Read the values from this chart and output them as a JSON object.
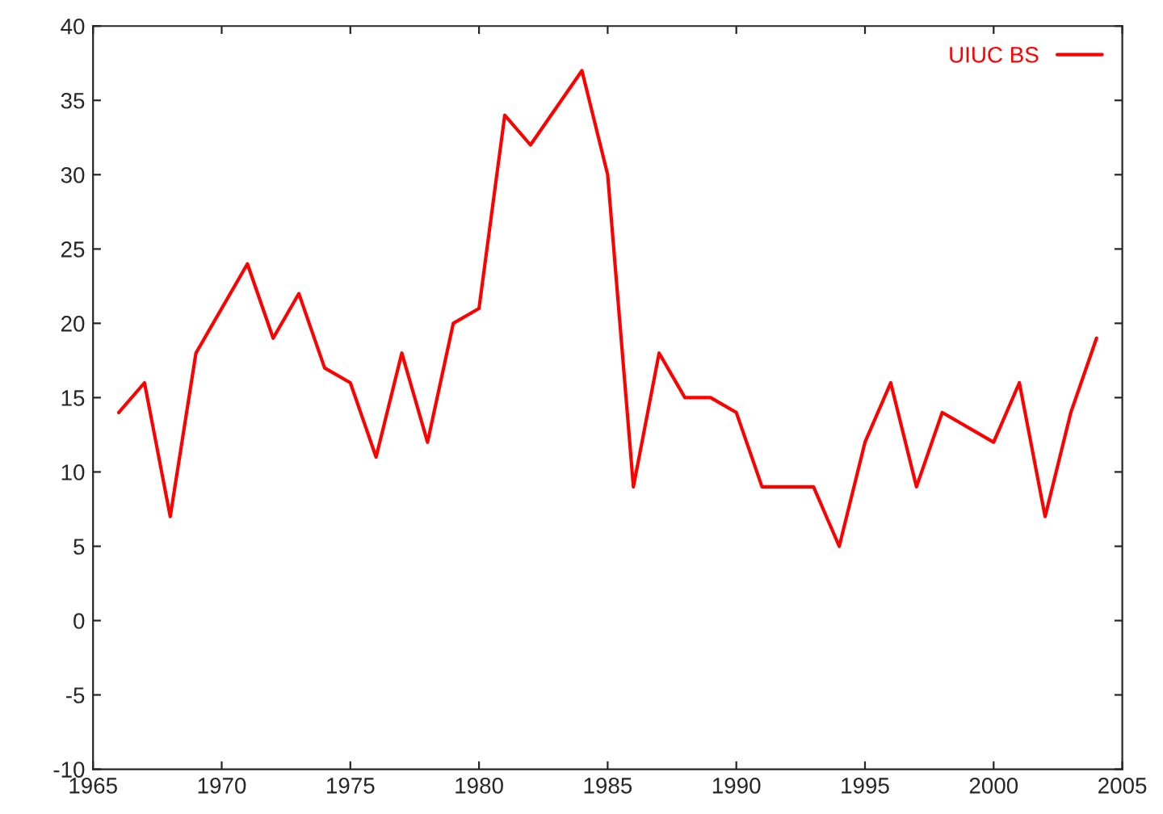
{
  "chart_data": {
    "type": "line",
    "x": [
      1966,
      1967,
      1968,
      1969,
      1971,
      1972,
      1973,
      1974,
      1975,
      1976,
      1977,
      1978,
      1979,
      1980,
      1981,
      1982,
      1984,
      1985,
      1986,
      1987,
      1988,
      1989,
      1990,
      1991,
      1992,
      1993,
      1994,
      1995,
      1996,
      1997,
      1998,
      2000,
      2001,
      2002,
      2003,
      2004
    ],
    "series": [
      {
        "name": "UIUC BS",
        "color": "#ff0000",
        "values": [
          14,
          16,
          7,
          18,
          24,
          19,
          22,
          17,
          16,
          11,
          18,
          12,
          20,
          21,
          34,
          32,
          37,
          30,
          9,
          18,
          15,
          15,
          14,
          9,
          9,
          9,
          5,
          12,
          16,
          9,
          14,
          12,
          16,
          7,
          14,
          19
        ]
      }
    ],
    "xlim": [
      1965,
      2005
    ],
    "xticks": [
      1965,
      1970,
      1975,
      1980,
      1985,
      1990,
      1995,
      2000,
      2005
    ],
    "ylim": [
      -10,
      40
    ],
    "yticks": [
      -10,
      -5,
      0,
      5,
      10,
      15,
      20,
      25,
      30,
      35,
      40
    ],
    "grid": false,
    "legend": "top right",
    "marker": "none",
    "line_style": "solid"
  }
}
